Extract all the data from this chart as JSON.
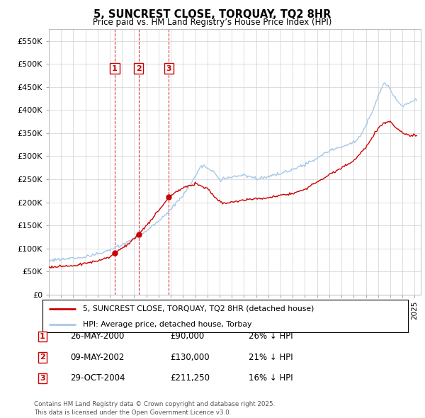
{
  "title": "5, SUNCREST CLOSE, TORQUAY, TQ2 8HR",
  "subtitle": "Price paid vs. HM Land Registry’s House Price Index (HPI)",
  "ylim": [
    0,
    575000
  ],
  "yticks": [
    0,
    50000,
    100000,
    150000,
    200000,
    250000,
    300000,
    350000,
    400000,
    450000,
    500000,
    550000
  ],
  "xlim_start": 1995.0,
  "xlim_end": 2025.5,
  "sale_dates": [
    2000.4,
    2002.36,
    2004.83
  ],
  "sale_prices": [
    90000,
    130000,
    211250
  ],
  "sale_labels": [
    "1",
    "2",
    "3"
  ],
  "legend_line1": "5, SUNCREST CLOSE, TORQUAY, TQ2 8HR (detached house)",
  "legend_line2": "HPI: Average price, detached house, Torbay",
  "table_data": [
    [
      "1",
      "26-MAY-2000",
      "£90,000",
      "26% ↓ HPI"
    ],
    [
      "2",
      "09-MAY-2002",
      "£130,000",
      "21% ↓ HPI"
    ],
    [
      "3",
      "29-OCT-2004",
      "£211,250",
      "16% ↓ HPI"
    ]
  ],
  "footer": "Contains HM Land Registry data © Crown copyright and database right 2025.\nThis data is licensed under the Open Government Licence v3.0.",
  "hpi_color": "#a8c8e8",
  "sale_color": "#cc0000",
  "background_color": "#ffffff",
  "grid_color": "#d0d0d0"
}
